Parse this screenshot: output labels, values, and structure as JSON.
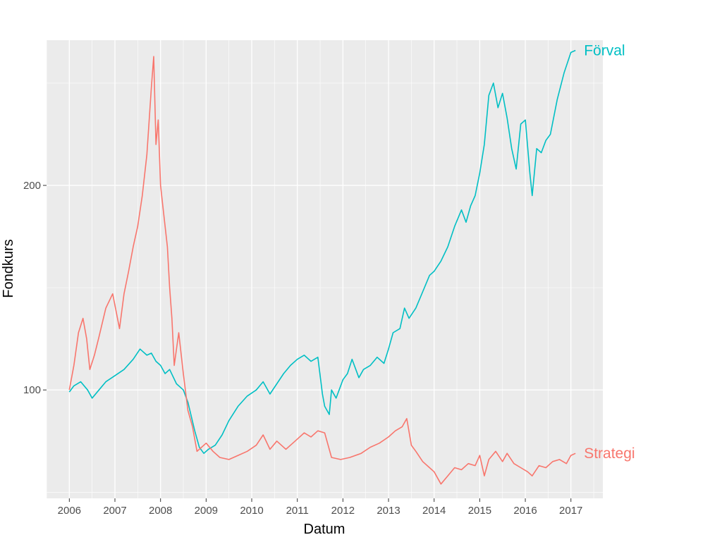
{
  "chart_data": {
    "type": "line",
    "title": "",
    "xlabel": "Datum",
    "ylabel": "Fondkurs",
    "x_ticks": [
      "2006",
      "2007",
      "2008",
      "2009",
      "2010",
      "2011",
      "2012",
      "2013",
      "2014",
      "2015",
      "2016",
      "2017"
    ],
    "y_ticks": [
      "100",
      "200"
    ],
    "xlim": [
      2005.5,
      2017.7
    ],
    "ylim": [
      47,
      271
    ],
    "grid": true,
    "legend": "direct labels at line ends (right)",
    "series": [
      {
        "name": "Förval",
        "color": "#00BFC4",
        "x": [
          2006.0,
          2006.1,
          2006.25,
          2006.4,
          2006.5,
          2006.65,
          2006.8,
          2007.0,
          2007.2,
          2007.4,
          2007.55,
          2007.7,
          2007.8,
          2007.9,
          2008.0,
          2008.1,
          2008.2,
          2008.35,
          2008.5,
          2008.6,
          2008.75,
          2008.85,
          2008.95,
          2009.05,
          2009.2,
          2009.35,
          2009.5,
          2009.7,
          2009.9,
          2010.1,
          2010.25,
          2010.4,
          2010.55,
          2010.7,
          2010.85,
          2011.0,
          2011.15,
          2011.3,
          2011.45,
          2011.55,
          2011.6,
          2011.7,
          2011.75,
          2011.85,
          2012.0,
          2012.1,
          2012.2,
          2012.35,
          2012.45,
          2012.6,
          2012.75,
          2012.9,
          2013.0,
          2013.1,
          2013.25,
          2013.35,
          2013.45,
          2013.6,
          2013.75,
          2013.9,
          2014.0,
          2014.15,
          2014.3,
          2014.45,
          2014.6,
          2014.7,
          2014.8,
          2014.9,
          2015.0,
          2015.1,
          2015.2,
          2015.3,
          2015.4,
          2015.5,
          2015.6,
          2015.7,
          2015.8,
          2015.9,
          2016.0,
          2016.1,
          2016.15,
          2016.25,
          2016.35,
          2016.45,
          2016.55,
          2016.7,
          2016.85,
          2017.0,
          2017.1
        ],
        "values": [
          99,
          102,
          104,
          100,
          96,
          100,
          104,
          107,
          110,
          115,
          120,
          117,
          118,
          114,
          112,
          108,
          110,
          103,
          100,
          94,
          80,
          72,
          69,
          71,
          73,
          78,
          85,
          92,
          97,
          100,
          104,
          98,
          103,
          108,
          112,
          115,
          117,
          114,
          116,
          98,
          92,
          88,
          100,
          96,
          105,
          108,
          115,
          106,
          110,
          112,
          116,
          113,
          120,
          128,
          130,
          140,
          135,
          140,
          148,
          156,
          158,
          163,
          170,
          180,
          188,
          182,
          190,
          195,
          206,
          220,
          244,
          250,
          238,
          245,
          233,
          218,
          208,
          230,
          232,
          206,
          195,
          218,
          216,
          222,
          225,
          242,
          255,
          265,
          266
        ]
      },
      {
        "name": "Strategi",
        "color": "#F8766D",
        "x": [
          2006.0,
          2006.1,
          2006.2,
          2006.3,
          2006.38,
          2006.45,
          2006.55,
          2006.65,
          2006.8,
          2006.95,
          2007.1,
          2007.2,
          2007.3,
          2007.4,
          2007.5,
          2007.6,
          2007.7,
          2007.8,
          2007.85,
          2007.9,
          2007.95,
          2008.0,
          2008.05,
          2008.15,
          2008.2,
          2008.25,
          2008.3,
          2008.4,
          2008.5,
          2008.6,
          2008.7,
          2008.8,
          2008.9,
          2009.0,
          2009.15,
          2009.3,
          2009.5,
          2009.7,
          2009.9,
          2010.1,
          2010.25,
          2010.4,
          2010.55,
          2010.75,
          2010.95,
          2011.15,
          2011.3,
          2011.45,
          2011.6,
          2011.75,
          2011.95,
          2012.15,
          2012.4,
          2012.6,
          2012.8,
          2013.0,
          2013.15,
          2013.3,
          2013.4,
          2013.5,
          2013.6,
          2013.75,
          2013.9,
          2014.0,
          2014.15,
          2014.3,
          2014.45,
          2014.6,
          2014.75,
          2014.9,
          2015.0,
          2015.1,
          2015.2,
          2015.35,
          2015.5,
          2015.6,
          2015.75,
          2015.9,
          2016.05,
          2016.15,
          2016.3,
          2016.45,
          2016.6,
          2016.75,
          2016.9,
          2017.0,
          2017.1
        ],
        "values": [
          100,
          112,
          128,
          135,
          125,
          110,
          117,
          126,
          140,
          147,
          130,
          147,
          158,
          170,
          180,
          195,
          215,
          248,
          263,
          220,
          232,
          200,
          190,
          170,
          150,
          135,
          112,
          128,
          108,
          90,
          82,
          70,
          72,
          74,
          70,
          67,
          66,
          68,
          70,
          73,
          78,
          71,
          75,
          71,
          75,
          79,
          77,
          80,
          79,
          67,
          66,
          67,
          69,
          72,
          74,
          77,
          80,
          82,
          86,
          73,
          70,
          65,
          62,
          60,
          54,
          58,
          62,
          61,
          64,
          63,
          68,
          58,
          66,
          70,
          65,
          69,
          64,
          62,
          60,
          58,
          63,
          62,
          65,
          66,
          64,
          68,
          69
        ]
      }
    ]
  }
}
